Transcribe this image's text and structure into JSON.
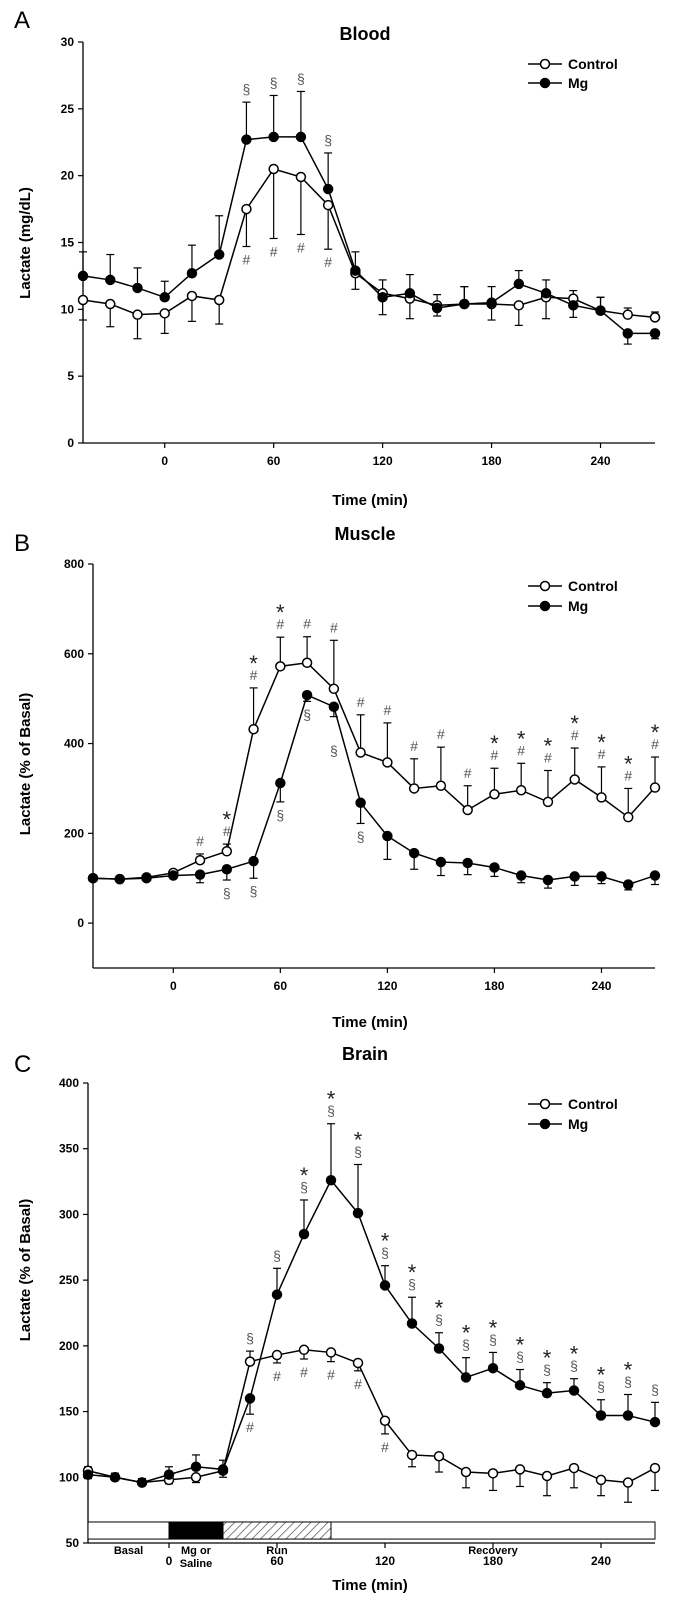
{
  "colors": {
    "control_fill": "#ffffff",
    "mg_fill": "#000000",
    "line": "#000000",
    "hatch": "#444444"
  },
  "chart_data": [
    {
      "panel": "A",
      "type": "line",
      "title": "Blood",
      "xlabel": "Time (min)",
      "ylabel": "Lactate (mg/dL)",
      "xlim": [
        -45,
        270
      ],
      "ylim": [
        0,
        30
      ],
      "xticks": [
        0,
        60,
        120,
        180,
        240
      ],
      "yticks": [
        0,
        5,
        10,
        15,
        20,
        25,
        30
      ],
      "legend": "top-right",
      "x": [
        -45,
        -30,
        -15,
        0,
        15,
        30,
        45,
        60,
        75,
        90,
        105,
        120,
        135,
        150,
        165,
        180,
        195,
        210,
        225,
        240,
        255,
        270
      ],
      "series": [
        {
          "name": "Control",
          "marker": "open-circle",
          "values": [
            10.7,
            10.4,
            9.6,
            9.7,
            11.0,
            10.7,
            17.5,
            20.5,
            19.9,
            17.8,
            12.7,
            11.2,
            10.8,
            10.3,
            10.4,
            10.4,
            10.3,
            10.9,
            10.8,
            9.9,
            9.6,
            9.4
          ],
          "errors": [
            1.5,
            1.7,
            1.8,
            1.5,
            1.9,
            1.8,
            2.8,
            5.2,
            4.3,
            3.3,
            1.2,
            1.0,
            1.5,
            0.8,
            1.3,
            1.2,
            1.5,
            1.6,
            0.6,
            1.0,
            0.5,
            0.4
          ]
        },
        {
          "name": "Mg",
          "marker": "filled-circle",
          "values": [
            12.5,
            12.2,
            11.6,
            10.9,
            12.7,
            14.1,
            22.7,
            22.9,
            22.9,
            19.0,
            12.9,
            10.9,
            11.2,
            10.1,
            10.4,
            10.5,
            11.9,
            11.2,
            10.3,
            9.9,
            8.2,
            8.2
          ],
          "errors": [
            1.8,
            1.9,
            1.5,
            1.2,
            2.1,
            2.9,
            2.8,
            3.1,
            3.4,
            2.7,
            1.4,
            1.3,
            1.4,
            0.6,
            1.3,
            1.2,
            1.0,
            1.0,
            0.9,
            1.0,
            0.8,
            0.4
          ]
        }
      ],
      "annotations": [
        {
          "x": 45,
          "above": [
            "§"
          ],
          "below": [
            "#"
          ]
        },
        {
          "x": 60,
          "above": [
            "§"
          ],
          "below": [
            "#"
          ]
        },
        {
          "x": 75,
          "above": [
            "§"
          ],
          "below": [
            "#"
          ]
        },
        {
          "x": 90,
          "above": [
            "§"
          ],
          "below": [
            "#"
          ]
        }
      ]
    },
    {
      "panel": "B",
      "type": "line",
      "title": "Muscle",
      "xlabel": "Time (min)",
      "ylabel": "Lactate (% of Basal)",
      "xlim": [
        -45,
        270
      ],
      "ylim": [
        -100,
        800
      ],
      "xticks": [
        0,
        60,
        120,
        180,
        240
      ],
      "yticks": [
        0,
        200,
        400,
        600,
        800
      ],
      "legend": "top-right",
      "x": [
        -45,
        -30,
        -15,
        0,
        15,
        30,
        45,
        60,
        75,
        90,
        105,
        120,
        135,
        150,
        165,
        180,
        195,
        210,
        225,
        240,
        255,
        270
      ],
      "series": [
        {
          "name": "Control",
          "marker": "open-circle",
          "values": [
            100,
            98,
            102,
            112,
            140,
            160,
            432,
            572,
            580,
            522,
            380,
            358,
            300,
            306,
            252,
            287,
            296,
            270,
            320,
            280,
            236,
            302
          ],
          "errors": [
            5,
            5,
            5,
            6,
            14,
            16,
            92,
            65,
            58,
            108,
            84,
            88,
            66,
            86,
            54,
            58,
            60,
            70,
            70,
            68,
            64,
            68
          ]
        },
        {
          "name": "Mg",
          "marker": "filled-circle",
          "values": [
            100,
            98,
            100,
            106,
            108,
            120,
            138,
            312,
            508,
            482,
            268,
            194,
            156,
            136,
            134,
            124,
            106,
            96,
            104,
            104,
            86,
            106
          ],
          "errors": [
            5,
            5,
            5,
            5,
            18,
            24,
            38,
            42,
            14,
            22,
            46,
            52,
            36,
            30,
            26,
            20,
            16,
            18,
            20,
            16,
            12,
            20
          ]
        }
      ],
      "annotations": [
        {
          "x": 15,
          "above": [
            "#"
          ],
          "below": []
        },
        {
          "x": 30,
          "above": [
            "*",
            "#"
          ],
          "below": [
            "§"
          ]
        },
        {
          "x": 45,
          "above": [
            "*",
            "#"
          ],
          "below": [
            "§"
          ]
        },
        {
          "x": 60,
          "above": [
            "*",
            "#"
          ],
          "below": [
            "§"
          ]
        },
        {
          "x": 75,
          "above": [
            "#"
          ],
          "below": [
            "§"
          ]
        },
        {
          "x": 90,
          "above": [
            "#"
          ],
          "below": [
            "§"
          ]
        },
        {
          "x": 105,
          "above": [
            "#"
          ],
          "below": [
            "§"
          ]
        },
        {
          "x": 120,
          "above": [
            "#"
          ],
          "below": []
        },
        {
          "x": 135,
          "above": [
            "#"
          ],
          "below": []
        },
        {
          "x": 150,
          "above": [
            "#"
          ],
          "below": []
        },
        {
          "x": 165,
          "above": [
            "#"
          ],
          "below": []
        },
        {
          "x": 180,
          "above": [
            "*",
            "#"
          ],
          "below": []
        },
        {
          "x": 195,
          "above": [
            "*",
            "#"
          ],
          "below": []
        },
        {
          "x": 210,
          "above": [
            "*",
            "#"
          ],
          "below": []
        },
        {
          "x": 225,
          "above": [
            "*",
            "#"
          ],
          "below": []
        },
        {
          "x": 240,
          "above": [
            "*",
            "#"
          ],
          "below": []
        },
        {
          "x": 255,
          "above": [
            "*",
            "#"
          ],
          "below": []
        },
        {
          "x": 270,
          "above": [
            "*",
            "#"
          ],
          "below": []
        }
      ]
    },
    {
      "panel": "C",
      "type": "line",
      "title": "Brain",
      "xlabel": "Time (min)",
      "ylabel": "Lactate (% of Basal)",
      "xlim": [
        -45,
        270
      ],
      "ylim": [
        50,
        400
      ],
      "xticks": [
        0,
        60,
        120,
        180,
        240
      ],
      "yticks": [
        50,
        100,
        150,
        200,
        250,
        300,
        350,
        400
      ],
      "legend": "top-right",
      "x": [
        -45,
        -30,
        -15,
        0,
        15,
        30,
        45,
        60,
        75,
        90,
        105,
        120,
        135,
        150,
        165,
        180,
        195,
        210,
        225,
        240,
        255,
        270
      ],
      "series": [
        {
          "name": "Control",
          "marker": "open-circle",
          "values": [
            105,
            100,
            96,
            98,
            100,
            105,
            188,
            193,
            197,
            195,
            187,
            143,
            117,
            116,
            104,
            103,
            106,
            101,
            107,
            98,
            96,
            107
          ],
          "errors": [
            3,
            3,
            3,
            3,
            4,
            5,
            8,
            6,
            7,
            7,
            6,
            10,
            9,
            12,
            12,
            13,
            13,
            15,
            15,
            12,
            15,
            17
          ]
        },
        {
          "name": "Mg",
          "marker": "filled-circle",
          "values": [
            102,
            100,
            96,
            102,
            108,
            106,
            160,
            239,
            285,
            326,
            301,
            246,
            217,
            198,
            176,
            183,
            170,
            164,
            166,
            147,
            147,
            142
          ],
          "errors": [
            3,
            3,
            3,
            6,
            9,
            7,
            12,
            20,
            26,
            43,
            37,
            15,
            20,
            12,
            15,
            12,
            12,
            8,
            9,
            12,
            16,
            15
          ]
        }
      ],
      "annotations": [
        {
          "x": 45,
          "above": [
            "§"
          ],
          "below": [
            "#"
          ]
        },
        {
          "x": 60,
          "above": [
            "§"
          ],
          "below": [
            "#"
          ]
        },
        {
          "x": 75,
          "above": [
            "*",
            "§"
          ],
          "below": [
            "#"
          ]
        },
        {
          "x": 90,
          "above": [
            "*",
            "§"
          ],
          "below": [
            "#"
          ]
        },
        {
          "x": 105,
          "above": [
            "*",
            "§"
          ],
          "below": [
            "#"
          ]
        },
        {
          "x": 120,
          "above": [
            "*",
            "§"
          ],
          "below": [
            "#"
          ]
        },
        {
          "x": 135,
          "above": [
            "*",
            "§"
          ],
          "below": []
        },
        {
          "x": 150,
          "above": [
            "*",
            "§"
          ],
          "below": []
        },
        {
          "x": 165,
          "above": [
            "*",
            "§"
          ],
          "below": []
        },
        {
          "x": 180,
          "above": [
            "*",
            "§"
          ],
          "below": []
        },
        {
          "x": 195,
          "above": [
            "*",
            "§"
          ],
          "below": []
        },
        {
          "x": 210,
          "above": [
            "*",
            "§"
          ],
          "below": []
        },
        {
          "x": 225,
          "above": [
            "*",
            "§"
          ],
          "below": []
        },
        {
          "x": 240,
          "above": [
            "*",
            "§"
          ],
          "below": []
        },
        {
          "x": 255,
          "above": [
            "*",
            "§"
          ],
          "below": []
        },
        {
          "x": 270,
          "above": [
            "§"
          ],
          "below": []
        }
      ],
      "phases": [
        {
          "label": "Basal",
          "start": -45,
          "end": 0,
          "fill": "white"
        },
        {
          "label": "Mg or\nSaline",
          "start": 0,
          "end": 30,
          "fill": "black"
        },
        {
          "label": "Run",
          "start": 30,
          "end": 90,
          "fill": "hatch"
        },
        {
          "label": "Recovery",
          "start": 90,
          "end": 270,
          "fill": "white"
        }
      ]
    }
  ]
}
